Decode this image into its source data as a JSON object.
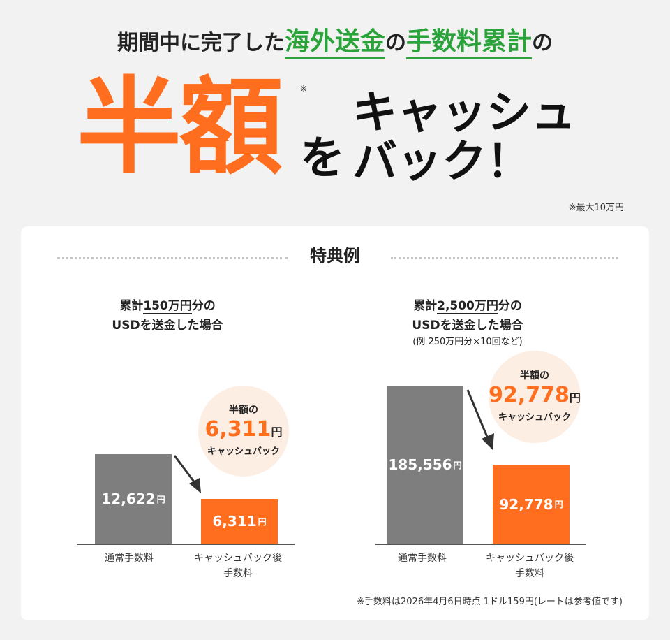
{
  "headline": {
    "part1": "期間中に完了した",
    "highlight1": "海外送金",
    "part2": "の",
    "highlight2": "手数料累計",
    "part3": "の"
  },
  "hero": {
    "big_text": "半額",
    "asterisk": "※",
    "wo": "を",
    "line1": "キャッシュ",
    "line2": "バック！",
    "max_note": "※最大10万円"
  },
  "section": {
    "title": "特典例"
  },
  "examples": [
    {
      "title_prefix": "累計",
      "title_amount": "150万円",
      "title_suffix": "分の",
      "title_line2": "USDを送金した場合",
      "sub": "",
      "normal_fee": "12,622",
      "after_fee": "6,311",
      "bubble_top": "半額の",
      "bubble_amount": "6,311",
      "bubble_bottom": "キャッシュバック"
    },
    {
      "title_prefix": "累計",
      "title_amount": "2,500万円",
      "title_suffix": "分の",
      "title_line2": "USDを送金した場合",
      "sub": "(例 250万円分×10回など)",
      "normal_fee": "185,556",
      "after_fee": "92,778",
      "bubble_top": "半額の",
      "bubble_amount": "92,778",
      "bubble_bottom": "キャッシュバック"
    }
  ],
  "labels": {
    "yen": "円",
    "normal_label": "通常手数料",
    "after_label_line1": "キャッシュバック後",
    "after_label_line2": "手数料"
  },
  "colors": {
    "accent_orange": "#ff6d1f",
    "accent_green": "#2aa33a",
    "bar_gray": "#7e7e7e",
    "bubble_bg": "#fdeee4"
  },
  "footnote": "※手数料は2026年4月6日時点 1ドル159円(レートは参考値です)"
}
